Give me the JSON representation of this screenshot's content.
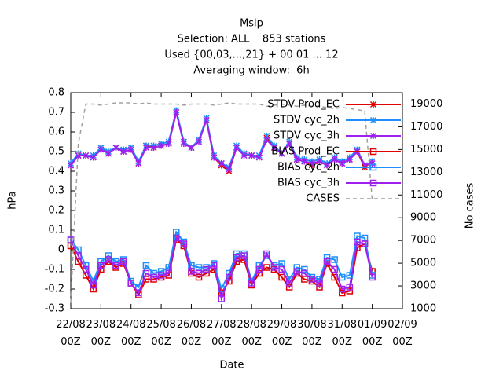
{
  "chart_data": {
    "type": "line",
    "title": "Mslp",
    "subtitle": [
      "Selection: ALL    853 stations",
      "Used {00,03,...,21} + 00 01 ... 12",
      "Averaging window:  6h"
    ],
    "xlabel": "Date",
    "ylabel": "hPa",
    "y2label": "No cases",
    "x": [
      0,
      0.25,
      0.5,
      0.75,
      1,
      1.25,
      1.5,
      1.75,
      2,
      2.25,
      2.5,
      2.75,
      3,
      3.25,
      3.5,
      3.75,
      4,
      4.25,
      4.5,
      4.75,
      5,
      5.25,
      5.5,
      5.75,
      6,
      6.25,
      6.5,
      6.75,
      7,
      7.25,
      7.5,
      7.75,
      8,
      8.25,
      8.5,
      8.75,
      9,
      9.25,
      9.5,
      9.75,
      10
    ],
    "xlim": [
      0,
      11
    ],
    "xticks": [
      {
        "value": 0,
        "label": "22/08 00Z"
      },
      {
        "value": 1,
        "label": "23/08 00Z"
      },
      {
        "value": 2,
        "label": "24/08 00Z"
      },
      {
        "value": 3,
        "label": "25/08 00Z"
      },
      {
        "value": 4,
        "label": "26/08 00Z"
      },
      {
        "value": 5,
        "label": "27/08 00Z"
      },
      {
        "value": 6,
        "label": "28/08 00Z"
      },
      {
        "value": 7,
        "label": "29/08 00Z"
      },
      {
        "value": 8,
        "label": "30/08 00Z"
      },
      {
        "value": 9,
        "label": "31/08 00Z"
      },
      {
        "value": 10,
        "label": "01/09 00Z"
      },
      {
        "value": 11,
        "label": "02/09 00Z"
      }
    ],
    "ylim": [
      -0.3,
      0.8
    ],
    "yticks": [
      -0.3,
      -0.2,
      -0.1,
      0,
      0.1,
      0.2,
      0.3,
      0.4,
      0.5,
      0.6,
      0.7,
      0.8
    ],
    "y2lim": [
      1000,
      20000
    ],
    "y2ticks": [
      1000,
      3000,
      5000,
      7000,
      9000,
      11000,
      13000,
      15000,
      17000,
      19000
    ],
    "legend": "top-right",
    "series": [
      {
        "name": "STDV Prod_EC",
        "color": "#e00000",
        "marker": "cross",
        "values": [
          0.43,
          0.48,
          0.48,
          0.47,
          0.52,
          0.49,
          0.52,
          0.5,
          0.51,
          0.44,
          0.53,
          0.52,
          0.53,
          0.54,
          0.7,
          0.55,
          0.52,
          0.56,
          0.66,
          0.47,
          0.43,
          0.4,
          0.52,
          0.49,
          0.48,
          0.47,
          0.57,
          0.52,
          0.49,
          0.54,
          0.46,
          0.45,
          0.43,
          0.45,
          0.43,
          0.46,
          0.44,
          0.46,
          0.5,
          0.42,
          0.45
        ]
      },
      {
        "name": "STDV cyc_2h",
        "color": "#1e8fff",
        "marker": "cross",
        "values": [
          0.44,
          0.49,
          0.48,
          0.48,
          0.52,
          0.5,
          0.52,
          0.51,
          0.52,
          0.45,
          0.53,
          0.53,
          0.54,
          0.55,
          0.71,
          0.55,
          0.52,
          0.56,
          0.67,
          0.48,
          0.44,
          0.42,
          0.53,
          0.49,
          0.48,
          0.48,
          0.58,
          0.53,
          0.49,
          0.55,
          0.47,
          0.46,
          0.45,
          0.46,
          0.44,
          0.47,
          0.45,
          0.47,
          0.51,
          0.43,
          0.45
        ]
      },
      {
        "name": "STDV cyc_3h",
        "color": "#a020f0",
        "marker": "cross",
        "values": [
          0.43,
          0.48,
          0.48,
          0.47,
          0.51,
          0.49,
          0.52,
          0.5,
          0.51,
          0.44,
          0.52,
          0.52,
          0.53,
          0.54,
          0.7,
          0.54,
          0.52,
          0.55,
          0.66,
          0.47,
          0.44,
          0.41,
          0.52,
          0.48,
          0.48,
          0.47,
          0.56,
          0.52,
          0.49,
          0.54,
          0.46,
          0.45,
          0.44,
          0.45,
          0.43,
          0.46,
          0.44,
          0.46,
          0.5,
          0.43,
          0.44
        ]
      },
      {
        "name": "BIAS Prod_EC",
        "color": "#e00000",
        "marker": "square",
        "values": [
          0.02,
          -0.06,
          -0.13,
          -0.2,
          -0.1,
          -0.06,
          -0.09,
          -0.07,
          -0.17,
          -0.23,
          -0.15,
          -0.15,
          -0.14,
          -0.13,
          0.05,
          0.02,
          -0.12,
          -0.14,
          -0.12,
          -0.1,
          -0.22,
          -0.16,
          -0.06,
          -0.05,
          -0.18,
          -0.12,
          -0.09,
          -0.1,
          -0.14,
          -0.19,
          -0.12,
          -0.15,
          -0.16,
          -0.19,
          -0.07,
          -0.14,
          -0.22,
          -0.21,
          0.01,
          0.03,
          -0.11
        ]
      },
      {
        "name": "BIAS cyc_2h",
        "color": "#1e8fff",
        "marker": "square",
        "values": [
          0.05,
          0.0,
          -0.08,
          -0.16,
          -0.06,
          -0.03,
          -0.06,
          -0.05,
          -0.16,
          -0.19,
          -0.08,
          -0.12,
          -0.11,
          -0.09,
          0.09,
          0.04,
          -0.08,
          -0.09,
          -0.09,
          -0.07,
          -0.2,
          -0.12,
          -0.02,
          -0.02,
          -0.16,
          -0.08,
          -0.03,
          -0.08,
          -0.07,
          -0.15,
          -0.09,
          -0.1,
          -0.14,
          -0.15,
          -0.04,
          -0.05,
          -0.14,
          -0.13,
          0.07,
          0.06,
          -0.13
        ]
      },
      {
        "name": "BIAS cyc_3h",
        "color": "#a020f0",
        "marker": "square",
        "values": [
          0.05,
          -0.03,
          -0.1,
          -0.18,
          -0.08,
          -0.05,
          -0.08,
          -0.06,
          -0.17,
          -0.22,
          -0.12,
          -0.14,
          -0.13,
          -0.12,
          0.06,
          0.03,
          -0.11,
          -0.12,
          -0.1,
          -0.08,
          -0.25,
          -0.14,
          -0.04,
          -0.03,
          -0.17,
          -0.1,
          -0.02,
          -0.09,
          -0.1,
          -0.17,
          -0.11,
          -0.12,
          -0.15,
          -0.17,
          -0.06,
          -0.1,
          -0.2,
          -0.19,
          0.04,
          0.03,
          -0.14
        ]
      },
      {
        "name": "CASES",
        "color": "#a0a0a0",
        "marker": "none",
        "dashed": true,
        "axis": "y2",
        "values": [
          1500,
          15500,
          19000,
          19000,
          18900,
          19000,
          19100,
          19100,
          19100,
          19000,
          19100,
          19000,
          19000,
          19000,
          19000,
          18900,
          19000,
          19000,
          19000,
          18900,
          19000,
          19100,
          19000,
          19000,
          19000,
          19000,
          18800,
          18900,
          19000,
          18900,
          18800,
          18900,
          18800,
          18800,
          18700,
          18600,
          18700,
          18600,
          18500,
          18400,
          10500
        ]
      }
    ]
  }
}
